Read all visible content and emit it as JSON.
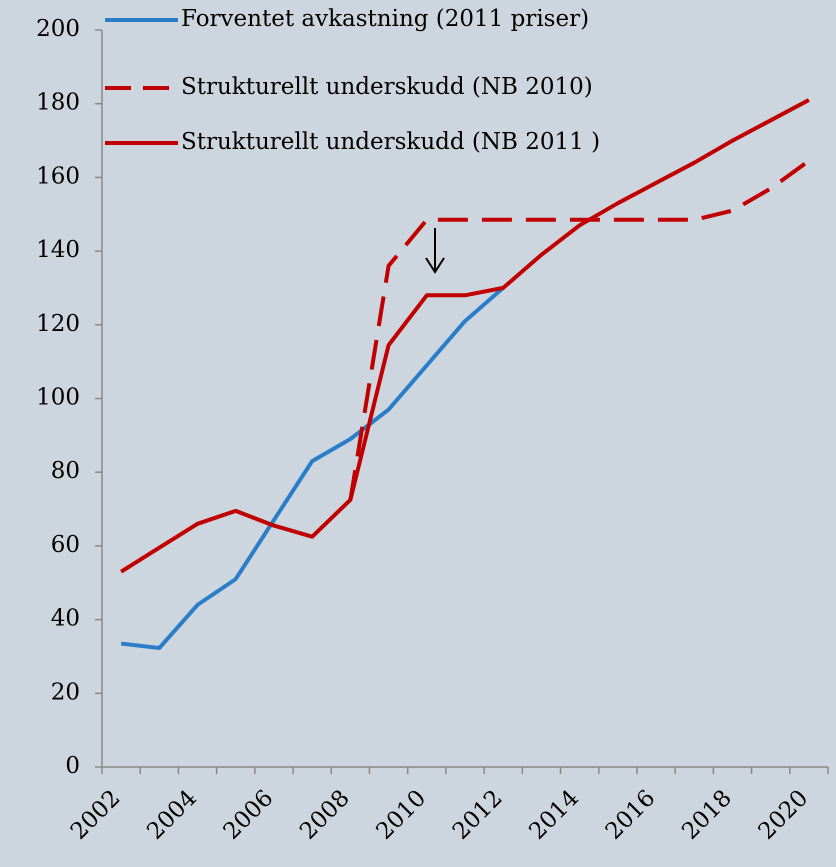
{
  "chart_data": {
    "type": "line",
    "categories": [
      "2002",
      null,
      "2004",
      null,
      "2006",
      null,
      "2008",
      null,
      "2010",
      null,
      "2012",
      null,
      "2014",
      null,
      "2016",
      null,
      "2018",
      null,
      "2020"
    ],
    "series": [
      {
        "name": "Forventet avkastning (2011 priser)",
        "color": "#2a7dc8",
        "style": "solid",
        "values": [
          33.5,
          32.3,
          44,
          51,
          67,
          83,
          89,
          97,
          109,
          121,
          130,
          null,
          null,
          null,
          null,
          null,
          null,
          null,
          null
        ]
      },
      {
        "name": "Strukturellt underskudd (NB 2010)",
        "color": "#c00000",
        "style": "dashed",
        "values": [
          null,
          null,
          null,
          null,
          null,
          null,
          72.5,
          136,
          148.5,
          148.5,
          148.5,
          148.5,
          148.5,
          148.5,
          148.5,
          148.5,
          151,
          157,
          164.5
        ]
      },
      {
        "name": "Strukturellt underskudd (NB 2011 )",
        "color": "#c00000",
        "style": "solid",
        "values": [
          53,
          59.5,
          66,
          69.5,
          65.5,
          62.5,
          72.5,
          114.5,
          128,
          128,
          130,
          139,
          147,
          153,
          158.5,
          164,
          170,
          175.5,
          181
        ]
      }
    ],
    "ylim": [
      0,
      200
    ],
    "yticks": [
      0,
      20,
      40,
      60,
      80,
      100,
      120,
      140,
      160,
      180,
      200
    ],
    "grid": false
  }
}
